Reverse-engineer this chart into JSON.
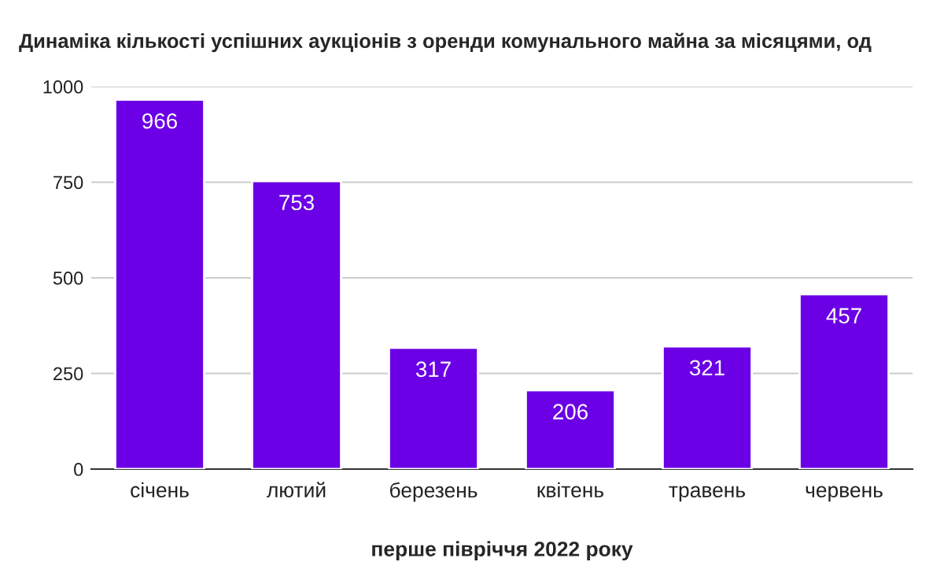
{
  "chart_data": {
    "type": "bar",
    "title": "Динаміка кількості успішних аукціонів з оренди комунального майна за місяцями, од",
    "xlabel": "перше півріччя 2022 року",
    "categories": [
      "січень",
      "лютий",
      "березень",
      "квітень",
      "травень",
      "червень"
    ],
    "values": [
      966,
      753,
      317,
      206,
      321,
      457
    ],
    "color": "#6b00e6",
    "ylim": [
      0,
      1000
    ],
    "yticks": [
      0,
      250,
      500,
      750,
      1000
    ],
    "grid": "y",
    "data_labels": true
  }
}
